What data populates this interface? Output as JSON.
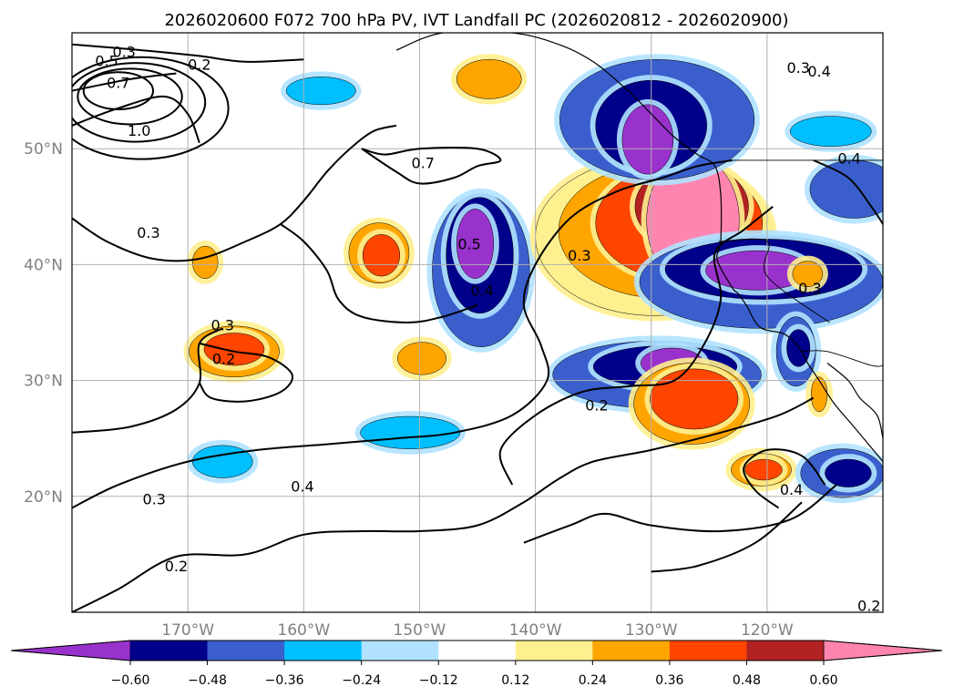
{
  "title": "2026020600 F072 700 hPa PV, IVT Landfall PC (2026020812 - 2026020900)",
  "map": {
    "lon_range": [
      -180,
      -110
    ],
    "lat_range": [
      10,
      60
    ],
    "lat_ticks": [
      "50°N",
      "40°N",
      "30°N",
      "20°N"
    ],
    "lon_ticks": [
      "170°W",
      "160°W",
      "150°W",
      "140°W",
      "130°W",
      "120°W"
    ],
    "grid": true
  },
  "colorbar": {
    "ticks": [
      "−0.60",
      "−0.48",
      "−0.36",
      "−0.24",
      "−0.12",
      "0.12",
      "0.24",
      "0.36",
      "0.48",
      "0.60"
    ],
    "colors": [
      "#9932cc",
      "#00008b",
      "#3a5fcd",
      "#00bfff",
      "#b0e2ff",
      "#ffffff",
      "#fff08f",
      "#ffa500",
      "#ff4500",
      "#b22222",
      "#ff85b0"
    ],
    "extend": "both"
  },
  "contour_labels": [
    {
      "text": "0.3",
      "lon": -175.5,
      "lat": 58.4
    },
    {
      "text": "0.2",
      "lon": -169.0,
      "lat": 57.3
    },
    {
      "text": "0.5",
      "lon": -177.0,
      "lat": 57.6
    },
    {
      "text": "0.7",
      "lon": -176.0,
      "lat": 55.7
    },
    {
      "text": "1.0",
      "lon": -174.2,
      "lat": 51.6
    },
    {
      "text": "0.3",
      "lon": -173.4,
      "lat": 42.8
    },
    {
      "text": "0.7",
      "lon": -149.7,
      "lat": 48.8
    },
    {
      "text": "0.3",
      "lon": -136.2,
      "lat": 40.8
    },
    {
      "text": "0.5",
      "lon": -145.7,
      "lat": 41.8
    },
    {
      "text": "0.4",
      "lon": -144.6,
      "lat": 37.8
    },
    {
      "text": "0.3",
      "lon": -117.3,
      "lat": 57.0
    },
    {
      "text": "0.4",
      "lon": -115.5,
      "lat": 56.7
    },
    {
      "text": "0.4",
      "lon": -112.9,
      "lat": 49.2
    },
    {
      "text": "0.3",
      "lon": -116.3,
      "lat": 38.0
    },
    {
      "text": "0.2",
      "lon": -134.7,
      "lat": 27.9
    },
    {
      "text": "0.3",
      "lon": -167.0,
      "lat": 34.8
    },
    {
      "text": "0.2",
      "lon": -166.9,
      "lat": 31.9
    },
    {
      "text": "0.3",
      "lon": -172.9,
      "lat": 19.8
    },
    {
      "text": "0.4",
      "lon": -160.1,
      "lat": 20.9
    },
    {
      "text": "0.2",
      "lon": -171.0,
      "lat": 14.0
    },
    {
      "text": "0.4",
      "lon": -117.9,
      "lat": 20.6
    },
    {
      "text": "0.2",
      "lon": -111.2,
      "lat": 10.6
    }
  ],
  "color_patches": [
    {
      "level": "neg3",
      "lon": -144.7,
      "lat": 39.5,
      "rx": 4.2,
      "ry": 6.6
    },
    {
      "level": "neg4",
      "lon": -144.8,
      "lat": 40.8,
      "rx": 2.9,
      "ry": 5.0
    },
    {
      "level": "neg5",
      "lon": -145.2,
      "lat": 41.8,
      "rx": 1.6,
      "ry": 3.0
    },
    {
      "level": "pos2",
      "lon": -129.8,
      "lat": 42.4,
      "rx": 10.2,
      "ry": 6.8
    },
    {
      "level": "pos3",
      "lon": -129.0,
      "lat": 42.9,
      "rx": 9.0,
      "ry": 5.8
    },
    {
      "level": "pos4",
      "lon": -127.6,
      "lat": 43.6,
      "rx": 7.2,
      "ry": 4.9
    },
    {
      "level": "pos5",
      "lon": -126.5,
      "lat": 45.0,
      "rx": 4.9,
      "ry": 3.7
    },
    {
      "level": "pos6",
      "lon": -126.4,
      "lat": 43.8,
      "rx": 4.0,
      "ry": 5.6
    },
    {
      "level": "neg3",
      "lon": -129.5,
      "lat": 52.5,
      "rx": 8.4,
      "ry": 5.2
    },
    {
      "level": "neg4",
      "lon": -130.0,
      "lat": 52.0,
      "rx": 4.8,
      "ry": 3.9
    },
    {
      "level": "neg5",
      "lon": -130.3,
      "lat": 50.8,
      "rx": 2.2,
      "ry": 3.0
    },
    {
      "level": "neg3",
      "lon": -120.5,
      "lat": 38.5,
      "rx": 10.5,
      "ry": 4.0
    },
    {
      "level": "neg4",
      "lon": -120.3,
      "lat": 39.6,
      "rx": 8.5,
      "ry": 2.6
    },
    {
      "level": "neg5",
      "lon": -120.8,
      "lat": 39.5,
      "rx": 4.5,
      "ry": 1.7
    },
    {
      "level": "neg3",
      "lon": -129.5,
      "lat": 30.5,
      "rx": 9.0,
      "ry": 2.9
    },
    {
      "level": "neg4",
      "lon": -128.8,
      "lat": 31.2,
      "rx": 6.2,
      "ry": 1.8
    },
    {
      "level": "neg5",
      "lon": -128.2,
      "lat": 31.5,
      "rx": 2.7,
      "ry": 1.3
    },
    {
      "level": "pos3",
      "lon": -126.5,
      "lat": 28.0,
      "rx": 5.0,
      "ry": 3.5
    },
    {
      "level": "pos4",
      "lon": -126.3,
      "lat": 28.4,
      "rx": 3.8,
      "ry": 2.6
    },
    {
      "level": "pos3",
      "lon": -144.0,
      "lat": 56.0,
      "rx": 2.8,
      "ry": 1.7
    },
    {
      "level": "pos3",
      "lon": -153.5,
      "lat": 41.0,
      "rx": 2.6,
      "ry": 2.6
    },
    {
      "level": "pos4",
      "lon": -153.3,
      "lat": 40.8,
      "rx": 1.6,
      "ry": 1.8
    },
    {
      "level": "pos3",
      "lon": -166.0,
      "lat": 32.5,
      "rx": 3.9,
      "ry": 2.2
    },
    {
      "level": "pos4",
      "lon": -166.0,
      "lat": 32.7,
      "rx": 2.6,
      "ry": 1.4
    },
    {
      "level": "pos3",
      "lon": -168.5,
      "lat": 40.2,
      "rx": 1.1,
      "ry": 1.4
    },
    {
      "level": "pos3",
      "lon": -149.8,
      "lat": 31.9,
      "rx": 2.1,
      "ry": 1.4
    },
    {
      "level": "neg2",
      "lon": -167.0,
      "lat": 23.0,
      "rx": 2.6,
      "ry": 1.4
    },
    {
      "level": "neg2",
      "lon": -150.8,
      "lat": 25.5,
      "rx": 4.3,
      "ry": 1.4
    },
    {
      "level": "neg2",
      "lon": -158.5,
      "lat": 55.0,
      "rx": 3.0,
      "ry": 1.2
    },
    {
      "level": "pos3",
      "lon": -120.5,
      "lat": 22.3,
      "rx": 2.6,
      "ry": 1.4
    },
    {
      "level": "pos4",
      "lon": -120.3,
      "lat": 22.3,
      "rx": 1.6,
      "ry": 0.9
    },
    {
      "level": "neg3",
      "lon": -113.5,
      "lat": 22.0,
      "rx": 3.6,
      "ry": 2.1
    },
    {
      "level": "neg4",
      "lon": -113.0,
      "lat": 22.0,
      "rx": 2.0,
      "ry": 1.2
    },
    {
      "level": "neg3",
      "lon": -117.5,
      "lat": 32.5,
      "rx": 1.7,
      "ry": 3.0
    },
    {
      "level": "neg4",
      "lon": -117.3,
      "lat": 32.8,
      "rx": 1.0,
      "ry": 1.6
    },
    {
      "level": "pos3",
      "lon": -116.5,
      "lat": 39.2,
      "rx": 1.3,
      "ry": 1.1
    },
    {
      "level": "pos3",
      "lon": -115.5,
      "lat": 28.8,
      "rx": 0.7,
      "ry": 1.5
    },
    {
      "level": "neg2",
      "lon": -114.5,
      "lat": 51.5,
      "rx": 3.5,
      "ry": 1.3
    },
    {
      "level": "neg3",
      "lon": -112.5,
      "lat": 46.5,
      "rx": 3.8,
      "ry": 2.5
    }
  ],
  "contour_lines": [
    [
      [
        -180,
        44
      ],
      [
        -177,
        42
      ],
      [
        -173,
        40.5
      ],
      [
        -169,
        40.5
      ],
      [
        -165,
        42
      ],
      [
        -162,
        43.5
      ],
      [
        -160,
        45.5
      ],
      [
        -158,
        48
      ],
      [
        -156,
        50
      ],
      [
        -154,
        51.5
      ],
      [
        -152,
        52
      ]
    ],
    [
      [
        -162,
        43.5
      ],
      [
        -160,
        42
      ],
      [
        -158,
        39.5
      ],
      [
        -157,
        37
      ],
      [
        -155,
        35.5
      ],
      [
        -151,
        35
      ],
      [
        -148,
        35.5
      ],
      [
        -145,
        36.5
      ]
    ],
    [
      [
        -180,
        25.5
      ],
      [
        -175,
        26
      ],
      [
        -171,
        27.5
      ],
      [
        -169,
        29.8
      ],
      [
        -169,
        33.2
      ],
      [
        -167,
        34.5
      ]
    ],
    [
      [
        -169,
        29.8
      ],
      [
        -168,
        28.5
      ],
      [
        -165,
        28.2
      ],
      [
        -162,
        29
      ],
      [
        -161,
        30.5
      ],
      [
        -163,
        32
      ],
      [
        -166,
        32.5
      ],
      [
        -169,
        33.2
      ]
    ],
    [
      [
        -180,
        19
      ],
      [
        -176,
        21
      ],
      [
        -170,
        23
      ],
      [
        -164,
        24
      ],
      [
        -158,
        24.5
      ],
      [
        -152,
        25
      ],
      [
        -147,
        25.5
      ],
      [
        -142,
        27
      ],
      [
        -139,
        30
      ],
      [
        -139.5,
        33
      ],
      [
        -141,
        36.5
      ],
      [
        -140,
        40
      ],
      [
        -137,
        44
      ],
      [
        -133,
        46.3
      ],
      [
        -129,
        47.5
      ],
      [
        -126,
        48.5
      ],
      [
        -123,
        49
      ]
    ],
    [
      [
        -180,
        10
      ],
      [
        -176,
        12
      ],
      [
        -171,
        14.8
      ],
      [
        -165,
        15
      ],
      [
        -160,
        16.7
      ],
      [
        -155,
        17
      ],
      [
        -150,
        17
      ],
      [
        -145,
        17.5
      ],
      [
        -141,
        19.5
      ],
      [
        -138,
        21.5
      ],
      [
        -135,
        23
      ],
      [
        -130,
        24
      ],
      [
        -124,
        25.5
      ],
      [
        -119,
        27
      ],
      [
        -116,
        28.5
      ]
    ],
    [
      [
        -155,
        50
      ],
      [
        -152,
        48
      ],
      [
        -150,
        47
      ],
      [
        -147,
        47.5
      ],
      [
        -145,
        48.5
      ],
      [
        -143,
        49
      ],
      [
        -145,
        50
      ],
      [
        -150,
        50
      ],
      [
        -153,
        49.5
      ],
      [
        -155,
        50
      ]
    ],
    [
      [
        -141,
        16
      ],
      [
        -137,
        17.5
      ],
      [
        -134,
        18.5
      ],
      [
        -130,
        17.5
      ],
      [
        -124,
        17
      ],
      [
        -118,
        18
      ],
      [
        -114,
        21
      ]
    ],
    [
      [
        -130,
        13.5
      ],
      [
        -126,
        14
      ],
      [
        -121,
        16
      ],
      [
        -117,
        19.5
      ]
    ],
    [
      [
        -142,
        21
      ],
      [
        -143,
        24
      ],
      [
        -140,
        27
      ],
      [
        -136,
        29
      ],
      [
        -132,
        29.5
      ],
      [
        -128,
        30
      ],
      [
        -125.5,
        33
      ],
      [
        -124,
        37
      ],
      [
        -124.5,
        41
      ],
      [
        -122,
        43
      ],
      [
        -119.5,
        45
      ]
    ],
    [
      [
        -180,
        59
      ],
      [
        -174,
        58.5
      ],
      [
        -169,
        58
      ],
      [
        -165,
        57.5
      ],
      [
        -160,
        57.7
      ]
    ],
    [
      [
        -180,
        55
      ],
      [
        -175,
        56
      ],
      [
        -171,
        56.5
      ]
    ],
    [
      [
        -180,
        52
      ],
      [
        -176,
        53.5
      ],
      [
        -172,
        54.5
      ],
      [
        -170,
        53
      ],
      [
        -169,
        50.5
      ]
    ],
    [
      [
        -119,
        19
      ],
      [
        -121,
        20.5
      ],
      [
        -122,
        22.5
      ],
      [
        -120,
        24
      ],
      [
        -117,
        23.5
      ],
      [
        -115,
        21
      ]
    ],
    [
      [
        -116,
        49
      ],
      [
        -113,
        47.5
      ],
      [
        -111,
        45
      ],
      [
        -110,
        43.5
      ]
    ]
  ],
  "coastline": [
    [
      [
        -152,
        58.5
      ],
      [
        -148,
        60
      ],
      [
        -142,
        60
      ],
      [
        -138,
        59
      ],
      [
        -135,
        57.5
      ],
      [
        -132,
        55
      ],
      [
        -130,
        53
      ],
      [
        -128,
        51
      ],
      [
        -126,
        49.5
      ],
      [
        -124.5,
        48.5
      ],
      [
        -124,
        46
      ],
      [
        -124,
        42
      ],
      [
        -124.3,
        40.4
      ],
      [
        -123,
        38
      ],
      [
        -122.5,
        37.5
      ],
      [
        -121.8,
        36.5
      ],
      [
        -120.6,
        34.6
      ],
      [
        -118.5,
        34
      ],
      [
        -117.2,
        32.8
      ],
      [
        -116.5,
        31.5
      ],
      [
        -115.5,
        30
      ],
      [
        -114.2,
        28
      ],
      [
        -112.5,
        26
      ],
      [
        -110,
        23
      ]
    ],
    [
      [
        -114.8,
        31.5
      ],
      [
        -113,
        30
      ],
      [
        -112,
        28.5
      ],
      [
        -110.5,
        27
      ],
      [
        -110,
        25
      ]
    ]
  ],
  "borders": [
    [
      [
        -123,
        49
      ],
      [
        -110,
        49
      ]
    ],
    [
      [
        -117,
        32.5
      ],
      [
        -114.8,
        32.5
      ],
      [
        -111,
        31.3
      ],
      [
        -110,
        31.3
      ]
    ],
    [
      [
        -124.2,
        42
      ],
      [
        -120,
        42
      ],
      [
        -120,
        39
      ],
      [
        -114.6,
        35
      ]
    ]
  ]
}
